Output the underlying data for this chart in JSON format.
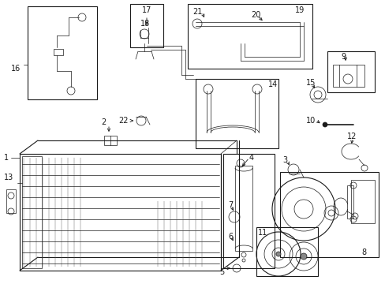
{
  "bg_color": "#ffffff",
  "line_color": "#1a1a1a",
  "fig_width": 4.89,
  "fig_height": 3.6,
  "dpi": 100,
  "font_size": 7.0,
  "lw_main": 0.8,
  "lw_thin": 0.5
}
